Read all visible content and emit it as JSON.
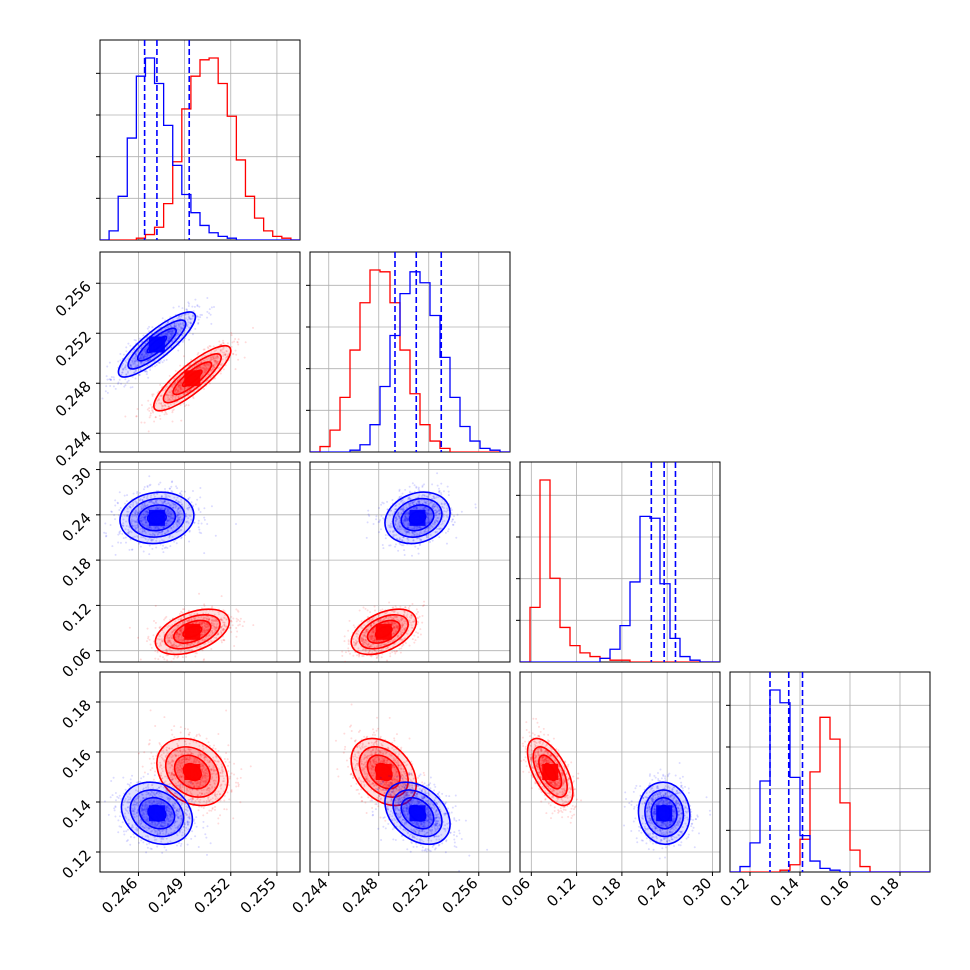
{
  "chart_data": {
    "type": "corner",
    "grid": true,
    "colors": {
      "series_a": "#ff0000",
      "series_b": "#0000ff"
    },
    "series_names": [
      "series_a",
      "series_b"
    ],
    "parameters": [
      {
        "id": "p0",
        "range": [
          0.2435,
          0.2565
        ],
        "ticks": [
          0.246,
          0.249,
          0.252,
          0.255
        ],
        "tick_labels": [
          "0.246",
          "0.249",
          "0.252",
          "0.255"
        ]
      },
      {
        "id": "p1",
        "range": [
          0.2425,
          0.2585
        ],
        "ticks": [
          0.244,
          0.248,
          0.252,
          0.256
        ],
        "tick_labels": [
          "0.244",
          "0.248",
          "0.252",
          "0.256"
        ]
      },
      {
        "id": "p2",
        "range": [
          0.045,
          0.31
        ],
        "ticks": [
          0.06,
          0.12,
          0.18,
          0.24,
          0.3
        ],
        "tick_labels": [
          "0.06",
          "0.12",
          "0.18",
          "0.24",
          "0.30"
        ]
      },
      {
        "id": "p3",
        "range": [
          0.112,
          0.192
        ],
        "ticks": [
          0.12,
          0.14,
          0.16,
          0.18
        ],
        "tick_labels": [
          "0.12",
          "0.14",
          "0.16",
          "0.18"
        ]
      }
    ],
    "marginal_histograms": [
      {
        "param": "p0",
        "series_a": [
          0.0,
          0.0,
          0.0,
          0.0,
          0.01,
          0.03,
          0.07,
          0.2,
          0.43,
          0.72,
          0.9,
          0.99,
          1.0,
          0.86,
          0.68,
          0.44,
          0.24,
          0.12,
          0.05,
          0.02,
          0.01,
          0.0
        ],
        "series_b": [
          0.0,
          0.05,
          0.24,
          0.56,
          0.9,
          1.0,
          0.86,
          0.63,
          0.41,
          0.25,
          0.15,
          0.08,
          0.04,
          0.02,
          0.01,
          0.0,
          0.0,
          0.0,
          0.0,
          0.0,
          0.0,
          0.0
        ],
        "quantile_lines_series_b": [
          0.2464,
          0.2472,
          0.2493
        ]
      },
      {
        "param": "p1",
        "series_a": [
          0.0,
          0.03,
          0.12,
          0.3,
          0.56,
          0.82,
          1.0,
          0.99,
          0.82,
          0.56,
          0.32,
          0.15,
          0.06,
          0.02,
          0.0,
          0.0,
          0.0,
          0.0,
          0.0,
          0.0
        ],
        "series_b": [
          0.0,
          0.0,
          0.0,
          0.0,
          0.01,
          0.04,
          0.15,
          0.36,
          0.64,
          0.87,
          0.99,
          0.93,
          0.75,
          0.52,
          0.3,
          0.14,
          0.06,
          0.02,
          0.01,
          0.0
        ],
        "quantile_lines_series_b": [
          0.2493,
          0.251,
          0.253
        ]
      },
      {
        "param": "p2",
        "series_a": [
          0.0,
          0.3,
          1.0,
          0.46,
          0.19,
          0.09,
          0.05,
          0.03,
          0.02,
          0.01,
          0.01,
          0.0,
          0.0,
          0.0,
          0.0,
          0.0,
          0.0,
          0.0,
          0.0,
          0.0
        ],
        "series_b": [
          0.0,
          0.0,
          0.0,
          0.0,
          0.0,
          0.0,
          0.0,
          0.0,
          0.02,
          0.07,
          0.2,
          0.44,
          0.8,
          0.79,
          0.43,
          0.13,
          0.03,
          0.01,
          0.0,
          0.0
        ],
        "quantile_lines_series_b": [
          0.219,
          0.236,
          0.251
        ]
      },
      {
        "param": "p3",
        "series_a": [
          0.0,
          0.0,
          0.0,
          0.0,
          0.0,
          0.01,
          0.04,
          0.18,
          0.55,
          0.85,
          0.73,
          0.38,
          0.12,
          0.03,
          0.0,
          0.0,
          0.0,
          0.0,
          0.0,
          0.0
        ],
        "series_b": [
          0.0,
          0.03,
          0.16,
          0.5,
          1.0,
          0.93,
          0.52,
          0.2,
          0.06,
          0.02,
          0.01,
          0.0,
          0.0,
          0.0,
          0.0,
          0.0,
          0.0,
          0.0,
          0.0,
          0.0
        ],
        "quantile_lines_series_b": [
          0.128,
          0.1355,
          0.141
        ]
      }
    ],
    "joint_posteriors": [
      {
        "x": "p0",
        "y": "p1",
        "series_a": {
          "mean": [
            0.2495,
            0.2484
          ],
          "sd": [
            0.00125,
            0.0013
          ],
          "rho": 0.85
        },
        "series_b": {
          "mean": [
            0.2472,
            0.2511
          ],
          "sd": [
            0.00125,
            0.0013
          ],
          "rho": 0.85
        }
      },
      {
        "x": "p0",
        "y": "p2",
        "series_a": {
          "mean": [
            0.2495,
            0.085
          ],
          "sd": [
            0.0012,
            0.015
          ],
          "rho": 0.45
        },
        "series_b": {
          "mean": [
            0.2472,
            0.236
          ],
          "sd": [
            0.0012,
            0.017
          ],
          "rho": 0.1
        }
      },
      {
        "x": "p1",
        "y": "p2",
        "series_a": {
          "mean": [
            0.2484,
            0.085
          ],
          "sd": [
            0.0013,
            0.015
          ],
          "rho": 0.45
        },
        "series_b": {
          "mean": [
            0.2511,
            0.236
          ],
          "sd": [
            0.0013,
            0.017
          ],
          "rho": 0.2
        }
      },
      {
        "x": "p0",
        "y": "p3",
        "series_a": {
          "mean": [
            0.2495,
            0.152
          ],
          "sd": [
            0.00115,
            0.0067
          ],
          "rho": -0.25
        },
        "series_b": {
          "mean": [
            0.2472,
            0.1355
          ],
          "sd": [
            0.00115,
            0.0062
          ],
          "rho": -0.2
        }
      },
      {
        "x": "p1",
        "y": "p3",
        "series_a": {
          "mean": [
            0.2484,
            0.152
          ],
          "sd": [
            0.0013,
            0.0067
          ],
          "rho": -0.35
        },
        "series_b": {
          "mean": [
            0.2511,
            0.1355
          ],
          "sd": [
            0.0013,
            0.0062
          ],
          "rho": -0.35
        }
      },
      {
        "x": "p2",
        "y": "p3",
        "series_a": {
          "mean": [
            0.085,
            0.152
          ],
          "sd": [
            0.015,
            0.0067
          ],
          "rho": -0.6
        },
        "series_b": {
          "mean": [
            0.236,
            0.1355
          ],
          "sd": [
            0.017,
            0.0062
          ],
          "rho": -0.05
        }
      }
    ]
  }
}
